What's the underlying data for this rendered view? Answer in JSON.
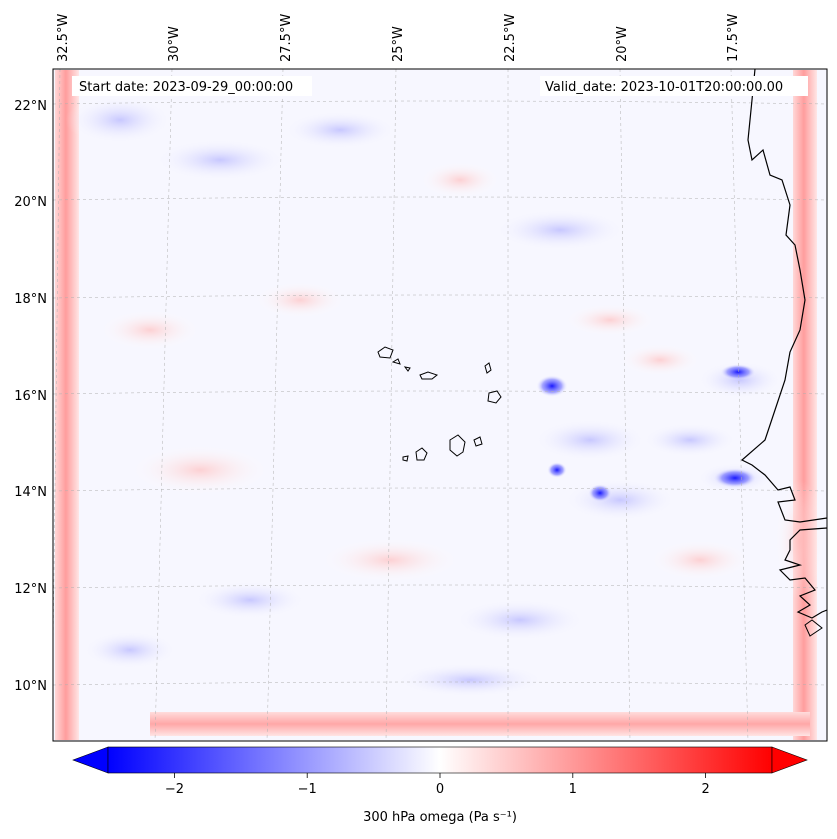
{
  "map": {
    "start_label": "Start date: 2023-09-29_00:00:00",
    "valid_label": "Valid_date: 2023-10-01T20:00:00.00",
    "lon_labels": [
      "32.5°W",
      "30°W",
      "27.5°W",
      "25°W",
      "22.5°W",
      "20°W",
      "17.5°W"
    ],
    "lat_labels": [
      "22°N",
      "20°N",
      "18°N",
      "16°N",
      "14°N",
      "12°N",
      "10°N"
    ],
    "gridlines": "dashed"
  },
  "colorbar": {
    "label": "300 hPa omega (Pa s⁻¹)",
    "ticks": [
      "−2",
      "−1",
      "0",
      "1",
      "2"
    ],
    "tick_values": [
      -2,
      -1,
      0,
      1,
      2
    ],
    "range": [
      -2.5,
      2.5
    ],
    "colormap": "bwr",
    "extend": "both"
  },
  "colors": {
    "low": "#0000ff",
    "mid": "#ffffff",
    "high": "#ff0000",
    "coastline": "#000000"
  }
}
